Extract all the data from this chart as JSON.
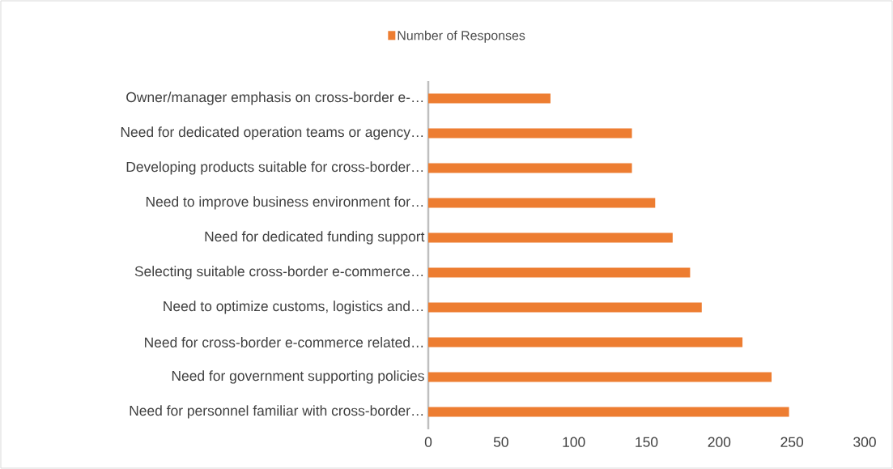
{
  "chart_data": {
    "type": "bar",
    "orientation": "horizontal",
    "categories": [
      "Owner/manager emphasis on cross-border e-…",
      "Need for dedicated operation teams or agency…",
      "Developing products suitable for cross-border…",
      "Need to improve business environment for…",
      "Need for dedicated funding support",
      "Selecting suitable cross-border e-commerce…",
      "Need to optimize customs, logistics and…",
      "Need for cross-border e-commerce related…",
      "Need for government supporting policies",
      "Need for personnel familiar with cross-border…"
    ],
    "series": [
      {
        "name": "Number of Responses",
        "color": "#ed7d31",
        "values": [
          84,
          140,
          140,
          156,
          168,
          180,
          188,
          216,
          236,
          248
        ]
      }
    ],
    "xlim": [
      0,
      300
    ],
    "xticks": [
      0,
      50,
      100,
      150,
      200,
      250,
      300
    ],
    "grid": false,
    "legend": "top"
  }
}
